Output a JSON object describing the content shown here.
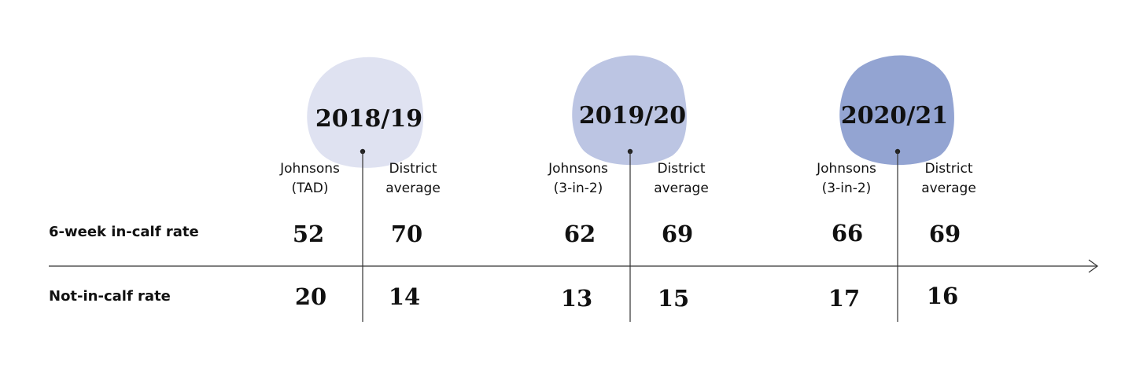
{
  "rows": [
    {
      "label": "6-week in-calf rate"
    },
    {
      "label": "Not-in-calf rate"
    }
  ],
  "periods": [
    {
      "label": "2018/19",
      "color": "#dfe2f1",
      "columns": [
        {
          "lines": [
            "Johnsons",
            "(TAD)"
          ],
          "values": [
            "52",
            "20"
          ]
        },
        {
          "lines": [
            "District",
            "average"
          ],
          "values": [
            "70",
            "14"
          ]
        }
      ]
    },
    {
      "label": "2019/20",
      "color": "#bcc5e3",
      "columns": [
        {
          "lines": [
            "Johnsons",
            "(3-in-2)"
          ],
          "values": [
            "62",
            "13"
          ]
        },
        {
          "lines": [
            "District",
            "average"
          ],
          "values": [
            "69",
            "15"
          ]
        }
      ]
    },
    {
      "label": "2020/21",
      "color": "#93a4d2",
      "columns": [
        {
          "lines": [
            "Johnsons",
            "(3-in-2)"
          ],
          "values": [
            "66",
            "17"
          ]
        },
        {
          "lines": [
            "District",
            "average"
          ],
          "values": [
            "69",
            "16"
          ]
        }
      ]
    }
  ],
  "colors": {
    "line": "#333333",
    "text": "#111111"
  }
}
